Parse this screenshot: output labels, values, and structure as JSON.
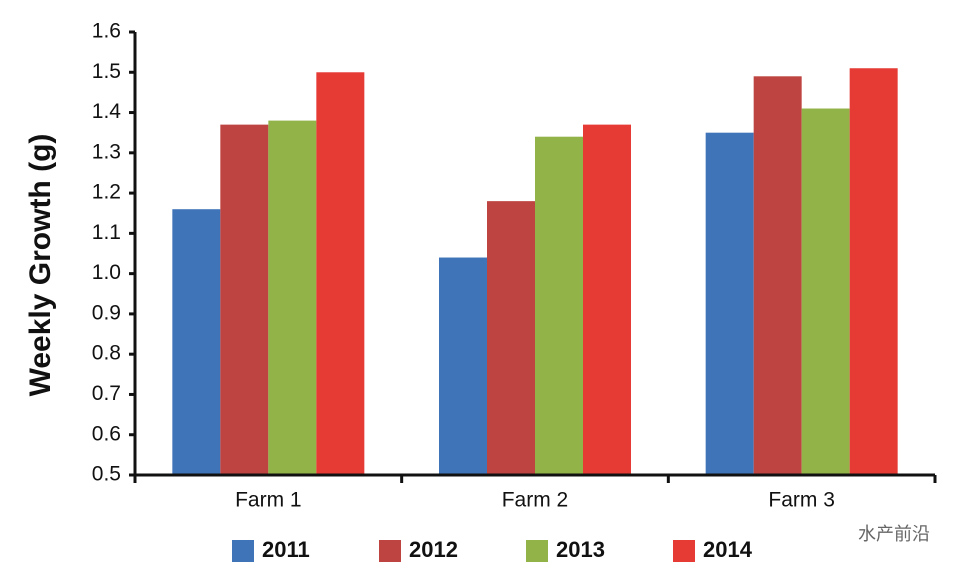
{
  "chart_data": {
    "type": "bar",
    "y_label": "Weekly Growth (g)",
    "categories": [
      "Farm 1",
      "Farm 2",
      "Farm 3"
    ],
    "series": [
      {
        "name": "2011",
        "color": "#3f74b8",
        "values": [
          1.16,
          1.04,
          1.35
        ]
      },
      {
        "name": "2012",
        "color": "#bd4440",
        "values": [
          1.37,
          1.18,
          1.49
        ]
      },
      {
        "name": "2013",
        "color": "#91b347",
        "values": [
          1.38,
          1.34,
          1.41
        ]
      },
      {
        "name": "2014",
        "color": "#e63a35",
        "values": [
          1.5,
          1.37,
          1.51
        ]
      }
    ],
    "ylim": [
      0.5,
      1.6
    ],
    "yticks": [
      0.5,
      0.6,
      0.7,
      0.8,
      0.9,
      {
        "value": 1,
        "label": "1.0"
      },
      1.1,
      1.2,
      1.3,
      1.4,
      1.5,
      1.6
    ],
    "grid": false,
    "legend": "bottom"
  },
  "watermark": "水产前沿"
}
